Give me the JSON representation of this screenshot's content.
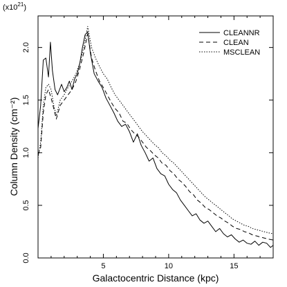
{
  "chart_data": {
    "type": "line",
    "xlabel": "Galactocentric Distance (kpc)",
    "ylabel": "Column Density (cm⁻²)",
    "y_scale_note_base": "(x10",
    "y_scale_note_exp": "21",
    "y_scale_note_close": ")",
    "xlim": [
      0,
      18
    ],
    "ylim": [
      0,
      2.3
    ],
    "x_ticks": [
      5,
      10,
      15
    ],
    "x_tick_labels": [
      "5",
      "10",
      "15"
    ],
    "y_ticks": [
      0.0,
      0.5,
      1.0,
      1.5,
      2.0
    ],
    "y_tick_labels": [
      "0.0",
      "0.5",
      "1.0",
      "1.5",
      "2.0"
    ],
    "legend_position": "top-right",
    "grid": false,
    "series": [
      {
        "name": "CLEANNR",
        "style": "solid",
        "x": [
          0.0,
          0.2,
          0.4,
          0.6,
          0.8,
          0.95,
          1.1,
          1.3,
          1.5,
          1.8,
          2.0,
          2.2,
          2.4,
          2.6,
          2.8,
          3.0,
          3.2,
          3.4,
          3.6,
          3.8,
          4.0,
          4.3,
          4.6,
          4.9,
          5.2,
          5.5,
          5.8,
          6.1,
          6.4,
          6.7,
          7.0,
          7.3,
          7.6,
          7.9,
          8.2,
          8.5,
          8.8,
          9.1,
          9.4,
          9.7,
          10.0,
          10.3,
          10.6,
          10.9,
          11.2,
          11.5,
          11.8,
          12.1,
          12.4,
          12.7,
          13.0,
          13.3,
          13.6,
          13.9,
          14.2,
          14.5,
          14.8,
          15.1,
          15.4,
          15.7,
          16.0,
          16.3,
          16.6,
          16.9,
          17.2,
          17.5,
          17.8,
          18.0
        ],
        "y": [
          1.23,
          1.45,
          1.88,
          1.9,
          1.72,
          2.05,
          1.78,
          1.6,
          1.55,
          1.65,
          1.58,
          1.62,
          1.68,
          1.6,
          1.7,
          1.75,
          1.85,
          2.0,
          2.12,
          2.15,
          1.95,
          1.75,
          1.68,
          1.62,
          1.52,
          1.45,
          1.38,
          1.3,
          1.25,
          1.27,
          1.2,
          1.1,
          1.18,
          1.07,
          1.0,
          0.92,
          0.95,
          0.85,
          0.8,
          0.78,
          0.7,
          0.65,
          0.62,
          0.55,
          0.5,
          0.45,
          0.4,
          0.42,
          0.36,
          0.33,
          0.35,
          0.3,
          0.25,
          0.28,
          0.23,
          0.2,
          0.22,
          0.18,
          0.15,
          0.17,
          0.14,
          0.13,
          0.16,
          0.12,
          0.15,
          0.14,
          0.1,
          0.12
        ]
      },
      {
        "name": "CLEAN",
        "style": "dashed",
        "x": [
          0.0,
          0.2,
          0.4,
          0.6,
          0.8,
          1.0,
          1.2,
          1.4,
          1.7,
          2.0,
          2.3,
          2.6,
          2.9,
          3.2,
          3.5,
          3.8,
          4.1,
          4.4,
          4.7,
          5.0,
          5.3,
          5.6,
          5.9,
          6.2,
          6.5,
          6.8,
          7.1,
          7.4,
          7.7,
          8.0,
          8.3,
          8.6,
          8.9,
          9.2,
          9.5,
          9.8,
          10.1,
          10.4,
          10.7,
          11.0,
          11.3,
          11.6,
          11.9,
          12.2,
          12.5,
          12.8,
          13.1,
          13.4,
          13.7,
          14.0,
          14.3,
          14.6,
          14.9,
          15.2,
          15.5,
          15.8,
          16.1,
          16.4,
          16.7,
          17.0,
          17.3,
          17.6,
          18.0
        ],
        "y": [
          0.98,
          1.05,
          1.38,
          1.55,
          1.6,
          1.52,
          1.42,
          1.32,
          1.45,
          1.5,
          1.55,
          1.6,
          1.68,
          1.8,
          1.95,
          2.13,
          1.9,
          1.78,
          1.68,
          1.62,
          1.55,
          1.48,
          1.42,
          1.38,
          1.3,
          1.28,
          1.22,
          1.18,
          1.15,
          1.1,
          1.05,
          1.02,
          0.98,
          0.95,
          0.9,
          0.88,
          0.83,
          0.8,
          0.75,
          0.72,
          0.68,
          0.63,
          0.6,
          0.55,
          0.52,
          0.48,
          0.46,
          0.43,
          0.4,
          0.38,
          0.35,
          0.33,
          0.3,
          0.28,
          0.27,
          0.25,
          0.24,
          0.22,
          0.21,
          0.2,
          0.19,
          0.18,
          0.17
        ]
      },
      {
        "name": "MSCLEAN",
        "style": "dotted",
        "x": [
          0.0,
          0.2,
          0.4,
          0.6,
          0.8,
          1.0,
          1.2,
          1.4,
          1.7,
          2.0,
          2.3,
          2.6,
          2.9,
          3.2,
          3.5,
          3.8,
          4.1,
          4.4,
          4.7,
          5.0,
          5.3,
          5.6,
          5.9,
          6.2,
          6.5,
          6.8,
          7.1,
          7.4,
          7.7,
          8.0,
          8.3,
          8.6,
          8.9,
          9.2,
          9.5,
          9.8,
          10.1,
          10.4,
          10.7,
          11.0,
          11.3,
          11.6,
          11.9,
          12.2,
          12.5,
          12.8,
          13.1,
          13.4,
          13.7,
          14.0,
          14.3,
          14.6,
          14.9,
          15.2,
          15.5,
          15.8,
          16.1,
          16.4,
          16.7,
          17.0,
          17.3,
          17.6,
          18.0
        ],
        "y": [
          0.95,
          1.1,
          1.45,
          1.62,
          1.65,
          1.6,
          1.45,
          1.35,
          1.5,
          1.55,
          1.62,
          1.68,
          1.75,
          1.85,
          2.0,
          2.2,
          2.0,
          1.9,
          1.82,
          1.75,
          1.7,
          1.62,
          1.55,
          1.5,
          1.45,
          1.4,
          1.35,
          1.3,
          1.25,
          1.2,
          1.16,
          1.12,
          1.08,
          1.05,
          1.0,
          0.97,
          0.93,
          0.9,
          0.86,
          0.82,
          0.78,
          0.74,
          0.7,
          0.66,
          0.62,
          0.58,
          0.55,
          0.52,
          0.49,
          0.46,
          0.43,
          0.4,
          0.37,
          0.35,
          0.33,
          0.31,
          0.3,
          0.28,
          0.27,
          0.26,
          0.25,
          0.24,
          0.23
        ]
      }
    ]
  }
}
